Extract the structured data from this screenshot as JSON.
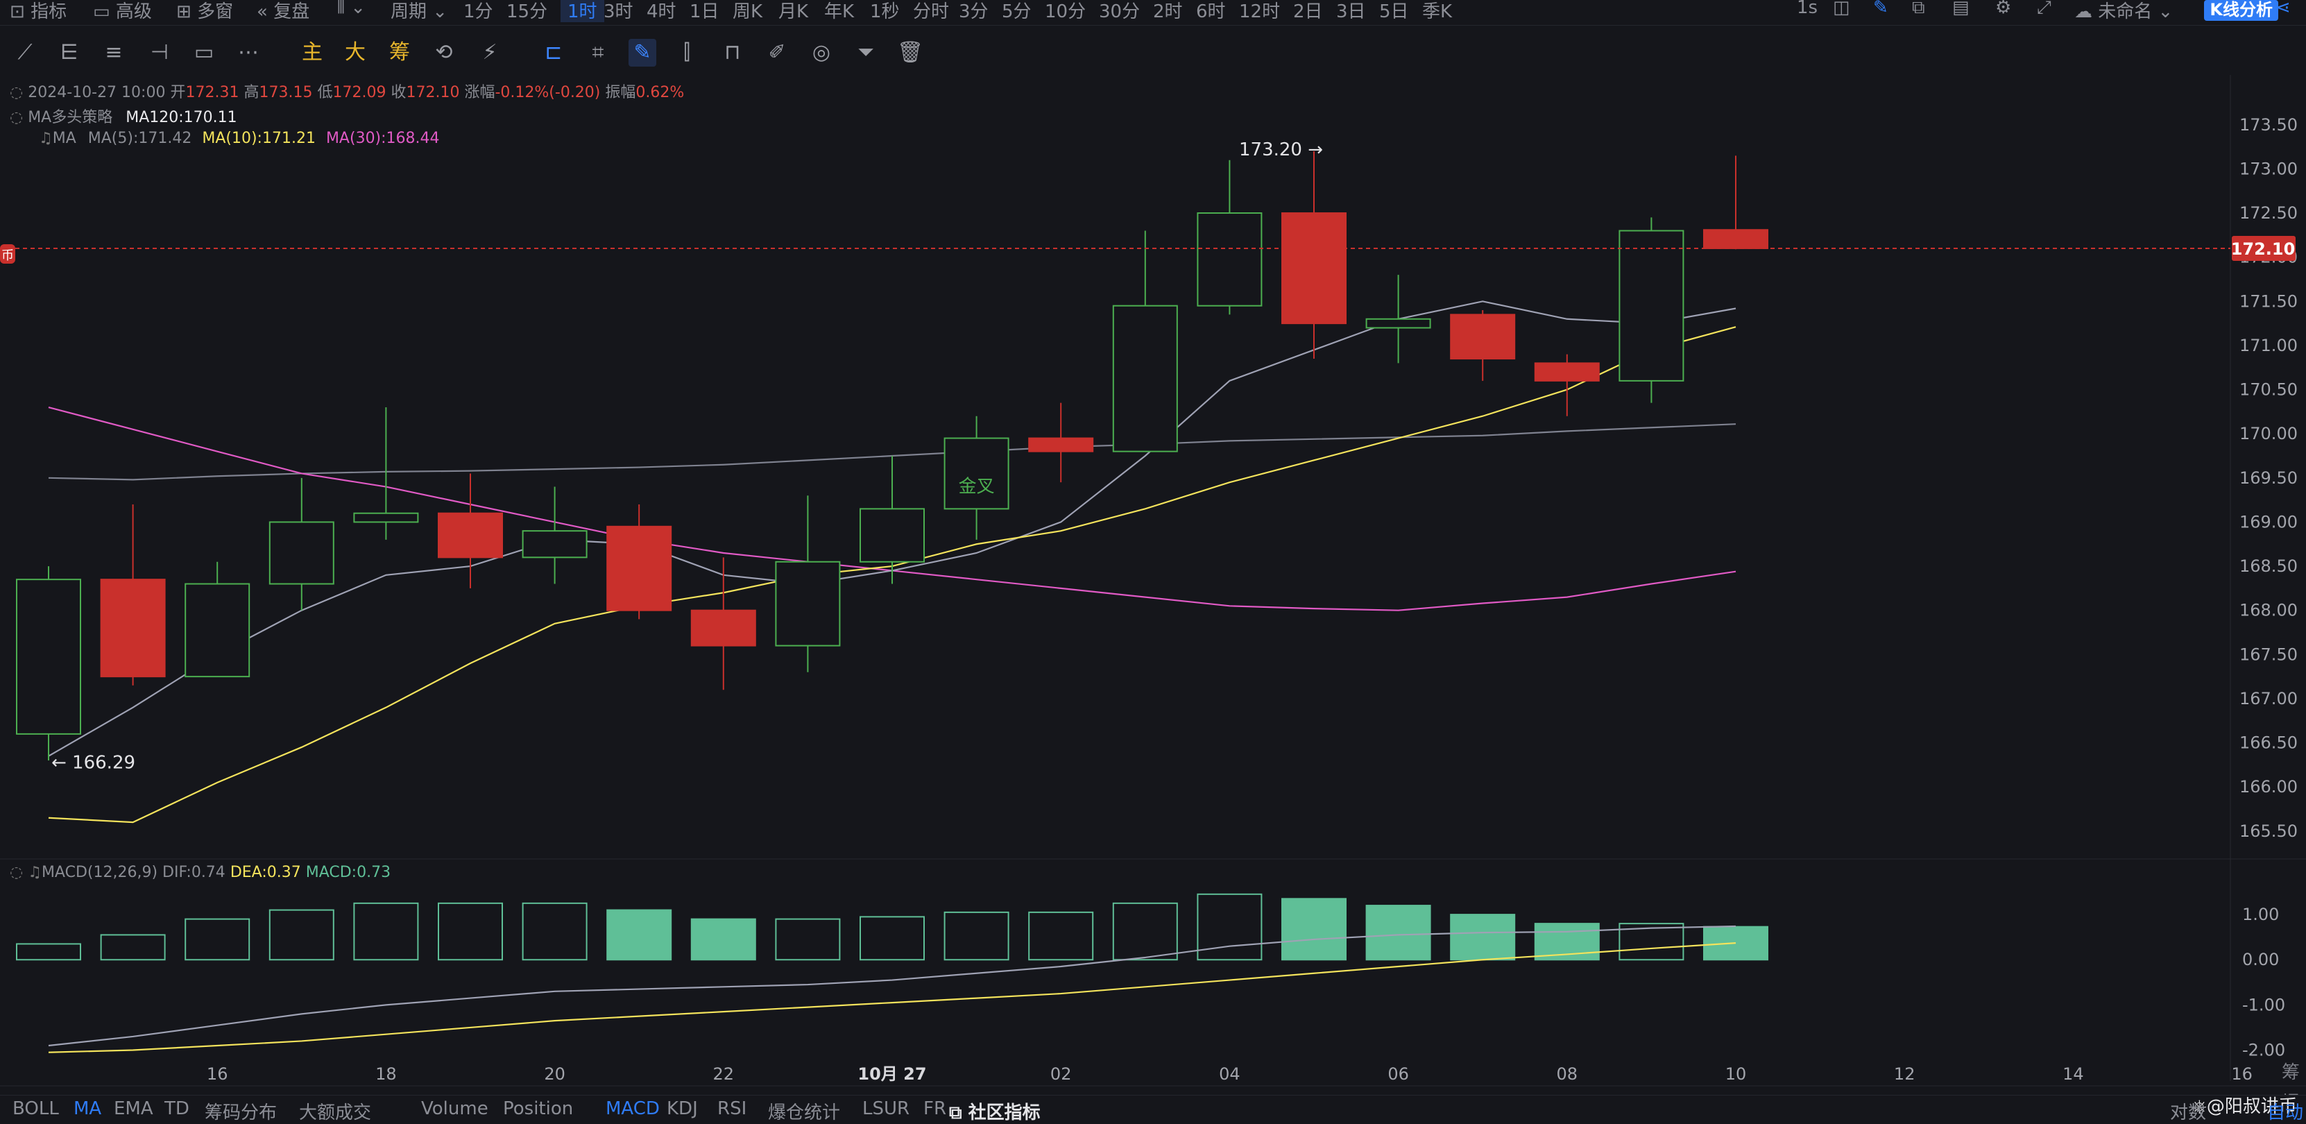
{
  "topbar": {
    "left_items": [
      {
        "icon": "indicator-icon",
        "label": "指标"
      },
      {
        "icon": "advanced-icon",
        "label": "高级"
      },
      {
        "icon": "multi-window-icon",
        "label": "多窗"
      },
      {
        "icon": "replay-icon",
        "label": "复盘"
      },
      {
        "icon": "chart-type-icon",
        "label": ""
      },
      {
        "icon": "",
        "label": "周期"
      }
    ],
    "periods": [
      "1分",
      "15分",
      "1时",
      "3时",
      "4时",
      "1日",
      "周K",
      "月K",
      "年K",
      "1秒",
      "分时",
      "3分",
      "5分",
      "10分",
      "30分",
      "2时",
      "6时",
      "12时",
      "2日",
      "3日",
      "5日",
      "季K"
    ],
    "active_period": "1时",
    "right_items": {
      "interval": "1s",
      "layout_name": "未命名",
      "kline_button": "K线分析"
    }
  },
  "toolbar": {
    "text_tools": [
      "主",
      "大",
      "筹"
    ]
  },
  "ohlc": {
    "datetime": "2024-10-27 10:00",
    "open_label": "开",
    "open": "172.31",
    "high_label": "高",
    "high": "173.15",
    "low_label": "低",
    "low": "172.09",
    "close_label": "收",
    "close": "172.10",
    "change_label": "涨幅",
    "change": "-0.12%(-0.20)",
    "amp_label": "振幅",
    "amp": "0.62%"
  },
  "strategy": {
    "name": "MA多头策略",
    "ma120": "MA120:170.11"
  },
  "ma_legend": {
    "name": "MA",
    "ma5": "MA(5):171.42",
    "ma10": "MA(10):171.21",
    "ma30": "MA(30):168.44"
  },
  "macd_legend": {
    "name": "MACD(12,26,9)",
    "dif": "DIF:0.74",
    "dea": "DEA:0.37",
    "macd": "MACD:0.73"
  },
  "price_tag": "172.10",
  "left_marker": "币",
  "annotations": {
    "high": "173.20",
    "low": "166.29",
    "golden_cross": "金叉"
  },
  "colors": {
    "up": "#4caf50",
    "down": "#c9302c",
    "ma5": "#9fa2b4",
    "ma10": "#f3e35c",
    "ma30": "#e05ac5",
    "ma120": "#7f8290",
    "macd_up": "#5fbf97",
    "accent": "#2f7cf6"
  },
  "chart_data": {
    "type": "candlestick",
    "interval": "1h",
    "candles": [
      {
        "o": 166.6,
        "h": 168.5,
        "l": 166.3,
        "c": 168.35
      },
      {
        "o": 168.35,
        "h": 169.2,
        "l": 167.15,
        "c": 167.25
      },
      {
        "o": 167.25,
        "h": 168.55,
        "l": 167.25,
        "c": 168.3
      },
      {
        "o": 168.3,
        "h": 169.5,
        "l": 168.0,
        "c": 169.0
      },
      {
        "o": 169.0,
        "h": 170.3,
        "l": 168.8,
        "c": 169.1
      },
      {
        "o": 169.1,
        "h": 169.55,
        "l": 168.25,
        "c": 168.6
      },
      {
        "o": 168.6,
        "h": 169.4,
        "l": 168.3,
        "c": 168.9
      },
      {
        "o": 168.95,
        "h": 169.2,
        "l": 167.9,
        "c": 168.0
      },
      {
        "o": 168.0,
        "h": 168.6,
        "l": 167.1,
        "c": 167.6
      },
      {
        "o": 167.6,
        "h": 169.3,
        "l": 167.3,
        "c": 168.55
      },
      {
        "o": 168.55,
        "h": 169.75,
        "l": 168.3,
        "c": 169.15
      },
      {
        "o": 169.15,
        "h": 170.2,
        "l": 168.8,
        "c": 169.95
      },
      {
        "o": 169.95,
        "h": 170.35,
        "l": 169.45,
        "c": 169.8
      },
      {
        "o": 169.8,
        "h": 172.3,
        "l": 169.8,
        "c": 171.45
      },
      {
        "o": 171.45,
        "h": 173.1,
        "l": 171.35,
        "c": 172.5
      },
      {
        "o": 172.5,
        "h": 173.2,
        "l": 170.85,
        "c": 171.25
      },
      {
        "o": 171.2,
        "h": 171.8,
        "l": 170.8,
        "c": 171.3
      },
      {
        "o": 171.35,
        "h": 171.4,
        "l": 170.6,
        "c": 170.85
      },
      {
        "o": 170.8,
        "h": 170.9,
        "l": 170.2,
        "c": 170.6
      },
      {
        "o": 170.6,
        "h": 172.45,
        "l": 170.35,
        "c": 172.3
      },
      {
        "o": 172.31,
        "h": 173.15,
        "l": 172.09,
        "c": 172.1
      }
    ],
    "ma5": [
      166.35,
      166.9,
      167.5,
      168.0,
      168.4,
      168.5,
      168.8,
      168.75,
      168.4,
      168.3,
      168.45,
      168.65,
      169.0,
      169.75,
      170.6,
      170.95,
      171.3,
      171.5,
      171.3,
      171.25,
      171.42
    ],
    "ma10": [
      165.65,
      165.6,
      166.05,
      166.45,
      166.9,
      167.4,
      167.85,
      168.05,
      168.2,
      168.4,
      168.5,
      168.75,
      168.9,
      169.15,
      169.45,
      169.7,
      169.95,
      170.2,
      170.5,
      170.95,
      171.21
    ],
    "ma30": [
      170.3,
      170.05,
      169.8,
      169.55,
      169.4,
      169.2,
      169.0,
      168.8,
      168.65,
      168.55,
      168.45,
      168.35,
      168.25,
      168.15,
      168.05,
      168.02,
      168.0,
      168.08,
      168.15,
      168.3,
      168.44
    ],
    "ma120": [
      169.5,
      169.48,
      169.52,
      169.55,
      169.57,
      169.58,
      169.6,
      169.62,
      169.65,
      169.7,
      169.75,
      169.8,
      169.85,
      169.88,
      169.92,
      169.94,
      169.96,
      169.98,
      170.03,
      170.07,
      170.11
    ],
    "macd": [
      0.35,
      0.55,
      0.9,
      1.1,
      1.25,
      1.25,
      1.25,
      1.1,
      0.9,
      0.9,
      0.95,
      1.05,
      1.05,
      1.25,
      1.45,
      1.35,
      1.2,
      1.0,
      0.8,
      0.8,
      0.73
    ],
    "dif": [
      -1.9,
      -1.7,
      -1.45,
      -1.2,
      -1.0,
      -0.85,
      -0.7,
      -0.65,
      -0.6,
      -0.55,
      -0.45,
      -0.3,
      -0.15,
      0.05,
      0.3,
      0.45,
      0.55,
      0.6,
      0.62,
      0.7,
      0.74
    ],
    "dea": [
      -2.05,
      -2.0,
      -1.9,
      -1.8,
      -1.65,
      -1.5,
      -1.35,
      -1.25,
      -1.15,
      -1.05,
      -0.95,
      -0.85,
      -0.75,
      -0.6,
      -0.45,
      -0.3,
      -0.15,
      0.0,
      0.12,
      0.25,
      0.37
    ],
    "price_axis": {
      "ticks": [
        "173.50",
        "173.00",
        "172.50",
        "172.00",
        "171.50",
        "171.00",
        "170.50",
        "170.00",
        "169.50",
        "169.00",
        "168.50",
        "168.00",
        "167.50",
        "167.00",
        "166.50",
        "166.00",
        "165.50"
      ],
      "range": [
        165.2,
        173.75
      ]
    },
    "macd_axis": {
      "ticks": [
        "1.00",
        "0.00",
        "-1.00",
        "-2.00"
      ],
      "range": [
        -2.1,
        1.8
      ]
    },
    "x_ticks": [
      "16",
      "18",
      "20",
      "22",
      "10月 27",
      "02",
      "04",
      "06",
      "08",
      "10",
      "12",
      "14",
      "16"
    ]
  },
  "bottombar": {
    "indicators": [
      "BOLL",
      "MA",
      "EMA",
      "TD",
      "筹码分布",
      "大额成交",
      "Volume",
      "Position",
      "MACD",
      "KDJ",
      "RSI",
      "爆仓统计",
      "LSUR",
      "FR"
    ],
    "active": [
      "MA",
      "MACD"
    ],
    "community": "社区指标",
    "right_text": "对数",
    "right_text2": "自动",
    "watermark": "@阳叔讲币",
    "corner_labels": [
      "筹",
      "爆"
    ]
  }
}
